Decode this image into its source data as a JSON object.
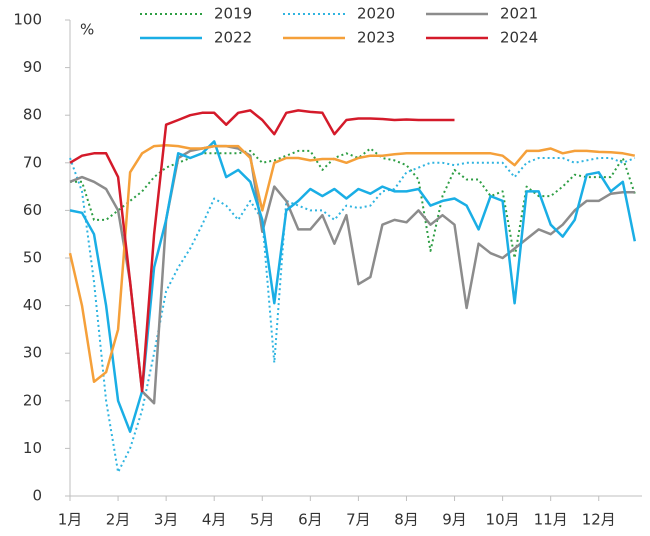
{
  "chart_data": {
    "type": "line",
    "y_unit_label": "%",
    "x": [
      1,
      1.25,
      1.5,
      1.75,
      2,
      2.25,
      2.5,
      2.75,
      3,
      3.25,
      3.5,
      3.75,
      4,
      4.25,
      4.5,
      4.75,
      5,
      5.25,
      5.5,
      5.75,
      6,
      6.25,
      6.5,
      6.75,
      7,
      7.25,
      7.5,
      7.75,
      8,
      8.25,
      8.5,
      8.75,
      9,
      9.25,
      9.5,
      9.75,
      10,
      10.25,
      10.5,
      10.75,
      11,
      11.25,
      11.5,
      11.75,
      12,
      12.25,
      12.5,
      12.75
    ],
    "xlim": [
      1,
      12.9
    ],
    "xticks": [
      {
        "value": 1,
        "label": "1月"
      },
      {
        "value": 2,
        "label": "2月"
      },
      {
        "value": 3,
        "label": "3月"
      },
      {
        "value": 4,
        "label": "4月"
      },
      {
        "value": 5,
        "label": "5月"
      },
      {
        "value": 6,
        "label": "6月"
      },
      {
        "value": 7,
        "label": "7月"
      },
      {
        "value": 8,
        "label": "8月"
      },
      {
        "value": 9,
        "label": "9月"
      },
      {
        "value": 10,
        "label": "10月"
      },
      {
        "value": 11,
        "label": "11月"
      },
      {
        "value": 12,
        "label": "12月"
      }
    ],
    "ylim": [
      0,
      100
    ],
    "yticks": [
      0,
      10,
      20,
      30,
      40,
      50,
      60,
      70,
      80,
      90,
      100
    ],
    "grid": false,
    "legend": "top",
    "series": [
      {
        "name": "2019",
        "color": "#2e9e44",
        "dash": "dotted",
        "values": [
          66,
          66,
          58,
          58,
          60,
          62,
          64,
          67,
          69,
          70,
          71,
          72,
          72,
          72,
          72,
          72.5,
          70,
          70.5,
          71.5,
          72.5,
          72.5,
          68.5,
          71,
          72,
          71,
          73,
          71,
          70.5,
          69.5,
          66.5,
          51.5,
          63,
          68.5,
          66.5,
          66.5,
          63,
          64,
          50,
          65,
          63,
          63,
          65,
          67.5,
          67,
          67,
          67,
          71,
          63.5
        ]
      },
      {
        "name": "2020",
        "color": "#2fb4e0",
        "dash": "dotted",
        "values": [
          71,
          64,
          45,
          20,
          5,
          10,
          18,
          30,
          43,
          48,
          52,
          57,
          62.5,
          61,
          58,
          62,
          58,
          28,
          62,
          61,
          60,
          60,
          58,
          61,
          60.5,
          61,
          64,
          64.5,
          68,
          69,
          70,
          70,
          69.5,
          70,
          70,
          70,
          70,
          67,
          70,
          71,
          71,
          71,
          70,
          70.5,
          71,
          71,
          70,
          71
        ]
      },
      {
        "name": "2021",
        "color": "#8c8c8c",
        "dash": "solid",
        "values": [
          66,
          67,
          66,
          64.5,
          60,
          45,
          22,
          19.5,
          58,
          71,
          72.5,
          73,
          73.5,
          73.5,
          73,
          71.5,
          55.5,
          65,
          62,
          56,
          56,
          59,
          53,
          59,
          44.5,
          46,
          57,
          58,
          57.5,
          60,
          57,
          59,
          57,
          39.5,
          53,
          51,
          50,
          52,
          54,
          56,
          55,
          57,
          60,
          62,
          62,
          63.5,
          63.8,
          63.8
        ]
      },
      {
        "name": "2022",
        "color": "#1aaee5",
        "dash": "solid",
        "values": [
          60,
          59.5,
          55,
          40,
          20,
          13.5,
          22,
          48,
          58,
          72,
          71,
          72,
          74.5,
          67,
          68.5,
          66,
          58,
          40.5,
          60,
          62,
          64.5,
          63,
          64.5,
          62.5,
          64.5,
          63.5,
          65,
          64,
          64,
          64.5,
          61,
          62,
          62.5,
          61,
          56,
          63,
          62,
          40.5,
          64,
          64,
          57,
          54.5,
          58,
          67.5,
          68,
          64,
          66,
          53.5
        ]
      },
      {
        "name": "2023",
        "color": "#f5a03a",
        "dash": "solid",
        "values": [
          51,
          40,
          24,
          26,
          35,
          68,
          72,
          73.5,
          73.7,
          73.5,
          73,
          73,
          73.5,
          73.5,
          73.5,
          71,
          60,
          70,
          71,
          71,
          70.5,
          70.8,
          70.8,
          70,
          71,
          71.5,
          71.5,
          71.8,
          72,
          72,
          72,
          72,
          72,
          72,
          72,
          72,
          71.5,
          69.5,
          72.5,
          72.5,
          73,
          72,
          72.5,
          72.5,
          72.3,
          72.2,
          72,
          71.5
        ]
      },
      {
        "name": "2024",
        "color": "#d41a2a",
        "dash": "solid",
        "values": [
          70,
          71.5,
          72,
          72,
          67,
          45,
          22,
          55,
          78,
          79,
          80,
          80.5,
          80.5,
          78,
          80.5,
          81,
          79,
          76,
          80.5,
          81,
          80.7,
          80.5,
          76,
          79,
          79.3,
          79.3,
          79.2,
          79,
          79.1,
          79,
          79,
          79,
          79,
          null,
          null,
          null,
          null,
          null,
          null,
          null,
          null,
          null,
          null,
          null,
          null,
          null,
          null,
          null
        ]
      }
    ]
  }
}
